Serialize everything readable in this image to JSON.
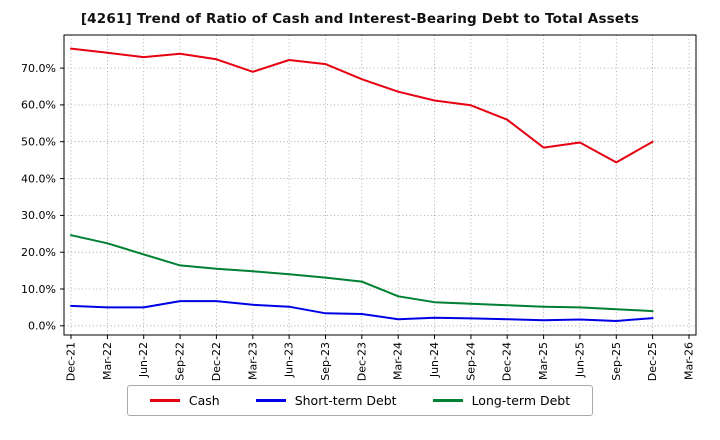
{
  "title": "[4261]  Trend of Ratio of Cash and Interest-Bearing Debt to Total Assets",
  "chart_data": {
    "type": "line",
    "title": "[4261]  Trend of Ratio of Cash and Interest-Bearing Debt to Total Assets",
    "categories": [
      "Dec-21",
      "Mar-22",
      "Jun-22",
      "Sep-22",
      "Dec-22",
      "Mar-23",
      "Jun-23",
      "Sep-23",
      "Dec-23",
      "Mar-24",
      "Jun-24",
      "Sep-24",
      "Dec-24",
      "Mar-25",
      "Jun-25",
      "Sep-25",
      "Dec-25",
      "Mar-26"
    ],
    "series": [
      {
        "name": "Cash",
        "color": "#e60012",
        "values": [
          75.3,
          74.2,
          73.0,
          73.9,
          72.4,
          69.0,
          72.2,
          71.1,
          67.0,
          63.6,
          61.2,
          59.9,
          56.0,
          48.4,
          49.8,
          44.4,
          50.0,
          null
        ]
      },
      {
        "name": "Short-term Debt",
        "color": "#0000e6",
        "values": [
          5.4,
          5.0,
          5.0,
          6.7,
          6.7,
          5.7,
          5.2,
          3.4,
          3.2,
          1.8,
          2.2,
          2.0,
          1.8,
          1.5,
          1.7,
          1.3,
          2.1,
          null
        ]
      },
      {
        "name": "Long-term Debt",
        "color": "#008033",
        "values": [
          24.6,
          22.4,
          19.4,
          16.4,
          15.5,
          14.8,
          14.0,
          13.1,
          12.0,
          8.0,
          6.4,
          6.0,
          5.6,
          5.2,
          5.0,
          4.5,
          4.0,
          null
        ]
      }
    ],
    "ylabel": "",
    "xlabel": "",
    "ylim": [
      -2.5,
      79.0
    ],
    "yticks": [
      0,
      10,
      20,
      30,
      40,
      50,
      60,
      70
    ],
    "ytick_format": "percent_one_decimal",
    "grid": true,
    "legend_position": "bottom"
  }
}
